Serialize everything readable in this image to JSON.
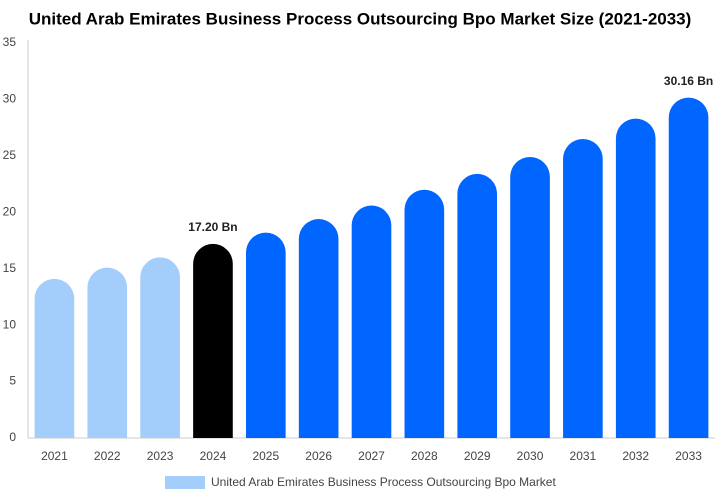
{
  "chart_data": {
    "type": "bar",
    "title": "United Arab Emirates Business Process Outsourcing Bpo Market Size (2021-2033)",
    "categories": [
      "2021",
      "2022",
      "2023",
      "2024",
      "2025",
      "2026",
      "2027",
      "2028",
      "2029",
      "2030",
      "2031",
      "2032",
      "2033"
    ],
    "series": [
      {
        "name": "United Arab Emirates Business Process Outsourcing Bpo Market",
        "color": "#a3cdfb",
        "colors": [
          "#a3cdfb",
          "#a3cdfb",
          "#a3cdfb",
          "#000000",
          "#0066ff",
          "#0066ff",
          "#0066ff",
          "#0066ff",
          "#0066ff",
          "#0066ff",
          "#0066ff",
          "#0066ff",
          "#0066ff"
        ],
        "values": [
          14.1,
          15.1,
          16.0,
          17.2,
          18.2,
          19.4,
          20.6,
          22.0,
          23.4,
          24.9,
          26.5,
          28.3,
          30.16
        ],
        "value_labels": [
          null,
          null,
          null,
          "17.20 Bn",
          null,
          null,
          null,
          null,
          null,
          null,
          null,
          null,
          "30.16 Bn"
        ]
      }
    ],
    "ylim": [
      0,
      35
    ],
    "yticks": [
      0,
      5,
      10,
      15,
      20,
      25,
      30,
      35
    ],
    "grid": false
  }
}
